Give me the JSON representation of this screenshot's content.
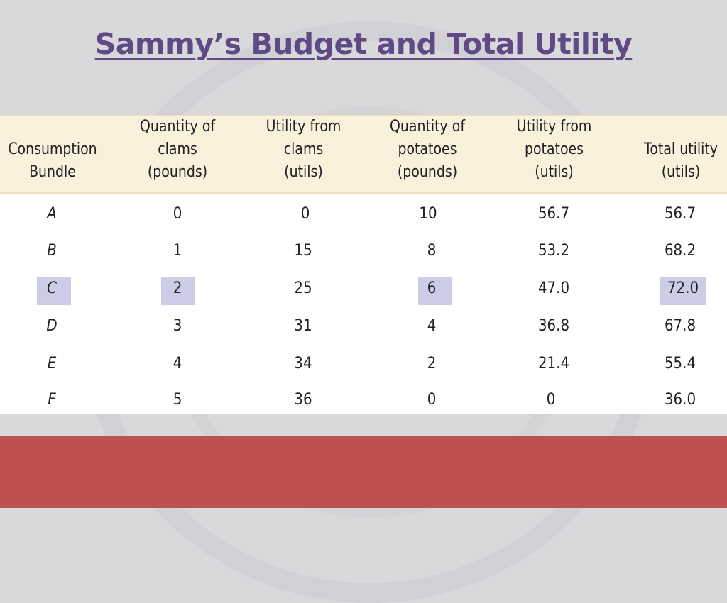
{
  "title": "Sammy’s Budget and Total Utility",
  "table": {
    "headers": [
      "Consumption\nBundle",
      "Quantity of\nclams\n(pounds)",
      "Utility from\nclams\n(utils)",
      "Quantity of\npotatoes\n(pounds)",
      "Utility from\npotatoes\n(utils)",
      "Total utility\n(utils)"
    ],
    "rows": [
      [
        "A",
        "0",
        "0",
        "10",
        "56.7",
        "56.7"
      ],
      [
        "B",
        "1",
        "15",
        "8",
        "53.2",
        "68.2"
      ],
      [
        "C",
        "2",
        "25",
        "6",
        "47.0",
        "72.0"
      ],
      [
        "D",
        "3",
        "31",
        "4",
        "36.8",
        "67.8"
      ],
      [
        "E",
        "4",
        "34",
        "2",
        "21.4",
        "55.4"
      ],
      [
        "F",
        "5",
        "36",
        "0",
        "0",
        "36.0"
      ]
    ],
    "highlight_color": "#cccce6"
  },
  "colors": {
    "title": "#5f4a86",
    "header_bg": "#f9f1dc",
    "band": "#c0504d",
    "background": "#d9d9dc"
  }
}
